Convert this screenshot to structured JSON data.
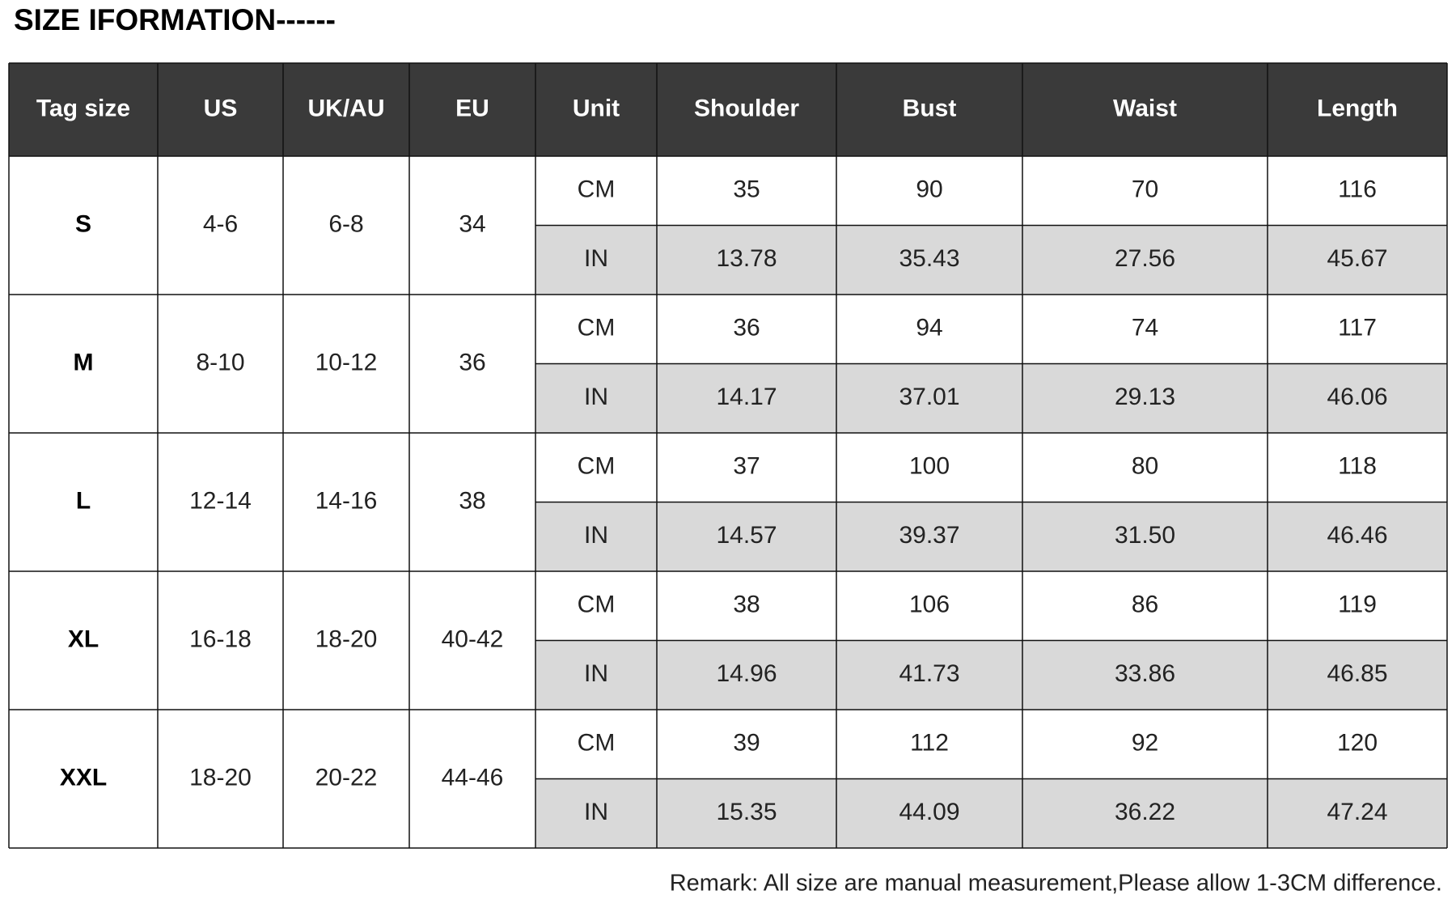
{
  "title": "SIZE IFORMATION------",
  "table": {
    "header": [
      "Tag size",
      "US",
      "UK/AU",
      "EU",
      "Unit",
      "Shoulder",
      "Bust",
      "Waist",
      "Length"
    ],
    "rows": [
      {
        "tag": "S",
        "us": "4-6",
        "uk_au": "6-8",
        "eu": "34",
        "cm": [
          "CM",
          "35",
          "90",
          "70",
          "116"
        ],
        "in": [
          "IN",
          "13.78",
          "35.43",
          "27.56",
          "45.67"
        ]
      },
      {
        "tag": "M",
        "us": "8-10",
        "uk_au": "10-12",
        "eu": "36",
        "cm": [
          "CM",
          "36",
          "94",
          "74",
          "117"
        ],
        "in": [
          "IN",
          "14.17",
          "37.01",
          "29.13",
          "46.06"
        ]
      },
      {
        "tag": "L",
        "us": "12-14",
        "uk_au": "14-16",
        "eu": "38",
        "cm": [
          "CM",
          "37",
          "100",
          "80",
          "118"
        ],
        "in": [
          "IN",
          "14.57",
          "39.37",
          "31.50",
          "46.46"
        ]
      },
      {
        "tag": "XL",
        "us": "16-18",
        "uk_au": "18-20",
        "eu": "40-42",
        "cm": [
          "CM",
          "38",
          "106",
          "86",
          "119"
        ],
        "in": [
          "IN",
          "14.96",
          "41.73",
          "33.86",
          "46.85"
        ]
      },
      {
        "tag": "XXL",
        "us": "18-20",
        "uk_au": "20-22",
        "eu": "44-46",
        "cm": [
          "CM",
          "39",
          "112",
          "92",
          "120"
        ],
        "in": [
          "IN",
          "15.35",
          "44.09",
          "36.22",
          "47.24"
        ]
      }
    ]
  },
  "remark": "Remark: All size are manual measurement,Please allow 1-3CM difference."
}
